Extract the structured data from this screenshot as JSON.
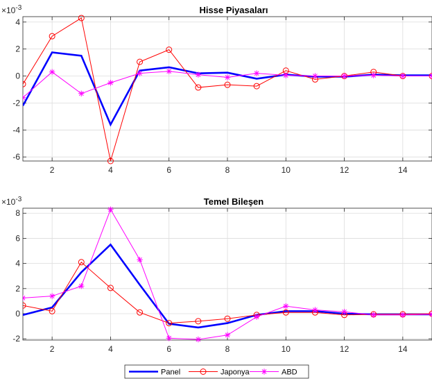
{
  "chart_data": [
    {
      "type": "line",
      "title": "Hisse Piyasaları",
      "y_exponent_base": "×10",
      "y_exponent": "-3",
      "xlim": [
        1,
        15
      ],
      "ylim": [
        -6.3,
        4.4
      ],
      "xticks": [
        2,
        4,
        6,
        8,
        10,
        12,
        14
      ],
      "yticks": [
        -6,
        -4,
        -2,
        0,
        2,
        4
      ],
      "grid": true,
      "x": [
        1,
        2,
        3,
        4,
        5,
        6,
        7,
        8,
        9,
        10,
        11,
        12,
        13,
        14,
        15
      ],
      "series": [
        {
          "name": "Panel",
          "color": "#0000ff",
          "marker": "none",
          "values": [
            -2.2,
            1.75,
            1.5,
            -3.6,
            0.4,
            0.65,
            0.2,
            0.25,
            -0.2,
            0.1,
            -0.05,
            -0.05,
            0.1,
            0.05,
            0.05
          ]
        },
        {
          "name": "Japonya",
          "color": "#ff0000",
          "marker": "circle",
          "values": [
            -0.6,
            2.95,
            4.3,
            -6.3,
            1.05,
            1.95,
            -0.85,
            -0.65,
            -0.75,
            0.4,
            -0.25,
            0.0,
            0.3,
            0.0,
            0.0
          ]
        },
        {
          "name": "ABD",
          "color": "#ff00ff",
          "marker": "star",
          "values": [
            -1.6,
            0.3,
            -1.3,
            -0.5,
            0.2,
            0.35,
            0.1,
            -0.1,
            0.2,
            0.05,
            0.0,
            0.0,
            0.05,
            0.0,
            0.0
          ]
        }
      ]
    },
    {
      "type": "line",
      "title": "Temel Bileşen",
      "y_exponent_base": "×10",
      "y_exponent": "-3",
      "xlim": [
        1,
        15
      ],
      "ylim": [
        -2.1,
        8.4
      ],
      "xticks": [
        2,
        4,
        6,
        8,
        10,
        12,
        14
      ],
      "yticks": [
        -2,
        0,
        2,
        4,
        6,
        8
      ],
      "grid": true,
      "x": [
        1,
        2,
        3,
        4,
        5,
        6,
        7,
        8,
        9,
        10,
        11,
        12,
        13,
        14,
        15
      ],
      "series": [
        {
          "name": "Panel",
          "color": "#0000ff",
          "marker": "none",
          "values": [
            -0.1,
            0.5,
            3.3,
            5.5,
            2.3,
            -0.8,
            -1.1,
            -0.75,
            -0.1,
            0.2,
            0.2,
            0.0,
            -0.05,
            -0.05,
            -0.05
          ]
        },
        {
          "name": "Japonya",
          "color": "#ff0000",
          "marker": "circle",
          "values": [
            0.65,
            0.2,
            4.1,
            2.05,
            0.1,
            -0.75,
            -0.6,
            -0.4,
            -0.1,
            0.1,
            0.1,
            -0.1,
            -0.05,
            -0.05,
            0.0
          ]
        },
        {
          "name": "ABD",
          "color": "#ff00ff",
          "marker": "star",
          "values": [
            1.25,
            1.4,
            2.2,
            8.3,
            4.3,
            -1.95,
            -2.05,
            -1.7,
            -0.25,
            0.6,
            0.3,
            0.15,
            -0.1,
            -0.1,
            -0.05
          ]
        }
      ]
    }
  ],
  "legend": {
    "placement": "bottom-center",
    "items": [
      {
        "label": "Panel",
        "color": "#0000ff",
        "marker": "none"
      },
      {
        "label": "Japonya",
        "color": "#ff0000",
        "marker": "circle"
      },
      {
        "label": "ABD",
        "color": "#ff00ff",
        "marker": "star"
      }
    ]
  }
}
